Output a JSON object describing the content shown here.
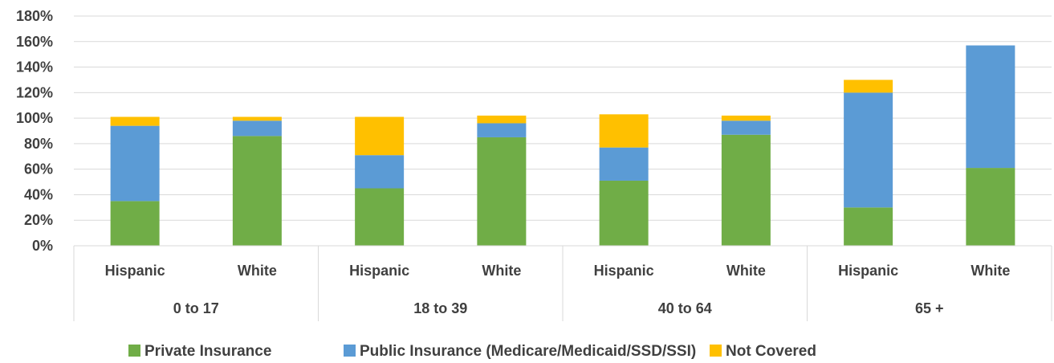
{
  "chart_data": {
    "type": "bar",
    "stacked": true,
    "groups": [
      "0 to 17",
      "18 to 39",
      "40 to 64",
      "65 +"
    ],
    "categories": [
      "Hispanic",
      "White",
      "Hispanic",
      "White",
      "Hispanic",
      "White",
      "Hispanic",
      "White"
    ],
    "series": [
      {
        "name": "Private Insurance",
        "color": "#70AD47",
        "values": [
          35,
          86,
          45,
          85,
          51,
          87,
          30,
          61
        ]
      },
      {
        "name": "Public Insurance (Medicare/Medicaid/SSD/SSI)",
        "color": "#5B9BD5",
        "values": [
          59,
          12,
          26,
          11,
          26,
          11,
          90,
          96
        ]
      },
      {
        "name": "Not Covered",
        "color": "#FFC000",
        "values": [
          7,
          3,
          30,
          6,
          26,
          4,
          10,
          0
        ]
      }
    ],
    "ylim": [
      0,
      180
    ],
    "yticks": [
      "0%",
      "20%",
      "40%",
      "60%",
      "80%",
      "100%",
      "120%",
      "140%",
      "160%",
      "180%"
    ],
    "grid": true,
    "legend": "bottom",
    "title": "",
    "xlabel": "",
    "ylabel": ""
  }
}
